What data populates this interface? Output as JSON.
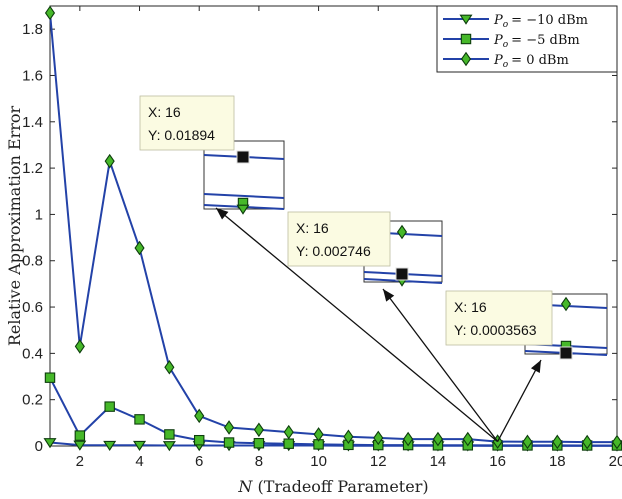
{
  "chart_data": {
    "type": "line",
    "xlabel_var": "N",
    "xlabel_rest": "(Tradeoff Parameter)",
    "ylabel": "Relative Approximation Error",
    "xlim": [
      1,
      20
    ],
    "ylim": [
      0,
      1.9
    ],
    "xticks": [
      2,
      4,
      6,
      8,
      10,
      12,
      14,
      16,
      18,
      20
    ],
    "yticks": [
      0,
      0.2,
      0.4,
      0.6,
      0.8,
      1,
      1.2,
      1.4,
      1.6,
      1.8
    ],
    "x": [
      1,
      2,
      3,
      4,
      5,
      6,
      7,
      8,
      9,
      10,
      11,
      12,
      13,
      14,
      15,
      16,
      17,
      18,
      19,
      20
    ],
    "legend_position": "top-right",
    "series": [
      {
        "name_lhs": "P",
        "name_sub": "o",
        "name_rhs": "= −10 dBm",
        "marker": "triangle-down",
        "values": [
          0.015,
          0.004,
          0.003,
          0.003,
          0.002,
          0.002,
          0.002,
          0.002,
          0.002,
          0.002,
          0.001,
          0.001,
          0.001,
          0.001,
          0.001,
          0.0004,
          0.0003,
          0.0003,
          0.0003,
          0.0003
        ]
      },
      {
        "name_lhs": "P",
        "name_sub": "o",
        "name_rhs": "= −5 dBm",
        "marker": "square",
        "values": [
          0.295,
          0.045,
          0.17,
          0.115,
          0.05,
          0.025,
          0.015,
          0.012,
          0.01,
          0.007,
          0.005,
          0.004,
          0.004,
          0.003,
          0.003,
          0.0027,
          0.0025,
          0.0024,
          0.0023,
          0.0022
        ]
      },
      {
        "name_lhs": "P",
        "name_sub": "o",
        "name_rhs": "= 0 dBm",
        "marker": "diamond",
        "values": [
          1.87,
          0.43,
          1.23,
          0.855,
          0.34,
          0.13,
          0.08,
          0.07,
          0.06,
          0.05,
          0.04,
          0.035,
          0.03,
          0.03,
          0.03,
          0.019,
          0.018,
          0.018,
          0.017,
          0.017
        ]
      }
    ],
    "colors": {
      "line": "#2342a8",
      "marker_fill": "#46b829",
      "marker_edge": "#0d3d0d",
      "axis": "#262626"
    },
    "datatips": [
      {
        "x_text": "X: 16",
        "y_text": "Y: 0.01894"
      },
      {
        "x_text": "X: 16",
        "y_text": "Y: 0.002746"
      },
      {
        "x_text": "X: 16",
        "y_text": "Y: 0.0003563"
      }
    ]
  }
}
